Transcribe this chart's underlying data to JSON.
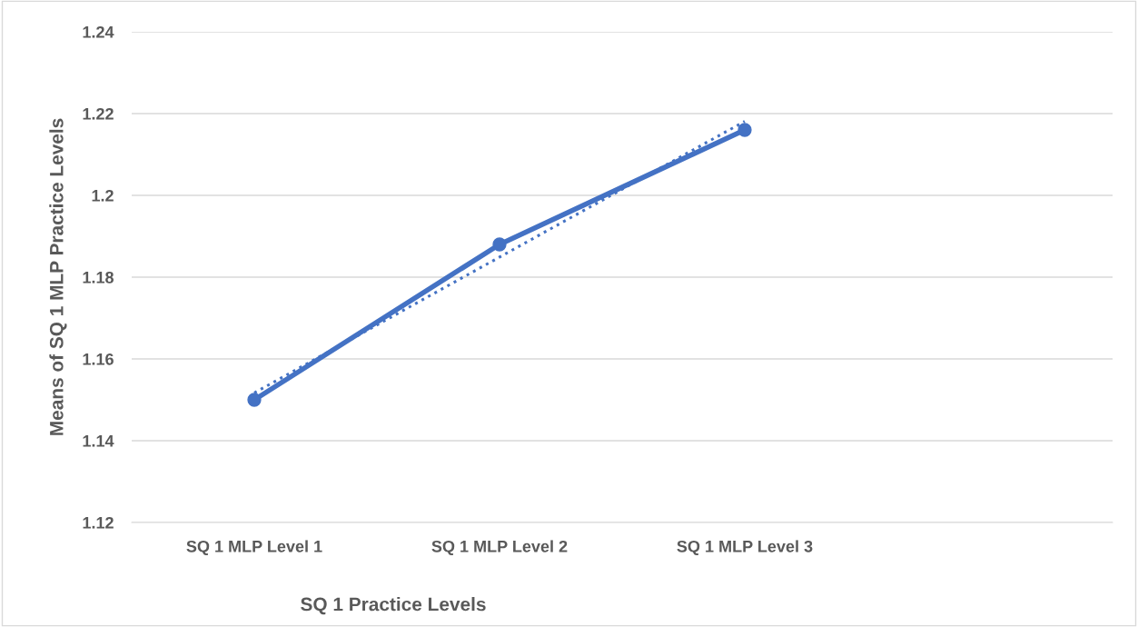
{
  "chart_data": {
    "type": "line",
    "xlabel": "SQ 1 Practice Levels",
    "ylabel": "Means of SQ 1 MLP Practice Levels",
    "categories": [
      "SQ 1 MLP Level 1",
      "SQ 1 MLP Level 2",
      "SQ 1 MLP Level 3",
      null
    ],
    "series": [
      {
        "color": "#4472c4",
        "values": [
          1.15,
          1.188,
          1.216,
          null
        ],
        "marker": "circle",
        "line_style": "solid"
      },
      {
        "type": "line",
        "color": "#4472c4",
        "values": [
          1.1517,
          1.1849,
          1.2181,
          null
        ],
        "marker": "none",
        "line_style": "dotted"
      }
    ],
    "ylim": [
      1.12,
      1.24
    ],
    "yticks": [
      1.12,
      1.14,
      1.16,
      1.18,
      1.2,
      1.22,
      1.24
    ],
    "grid": "y",
    "legend": false
  }
}
